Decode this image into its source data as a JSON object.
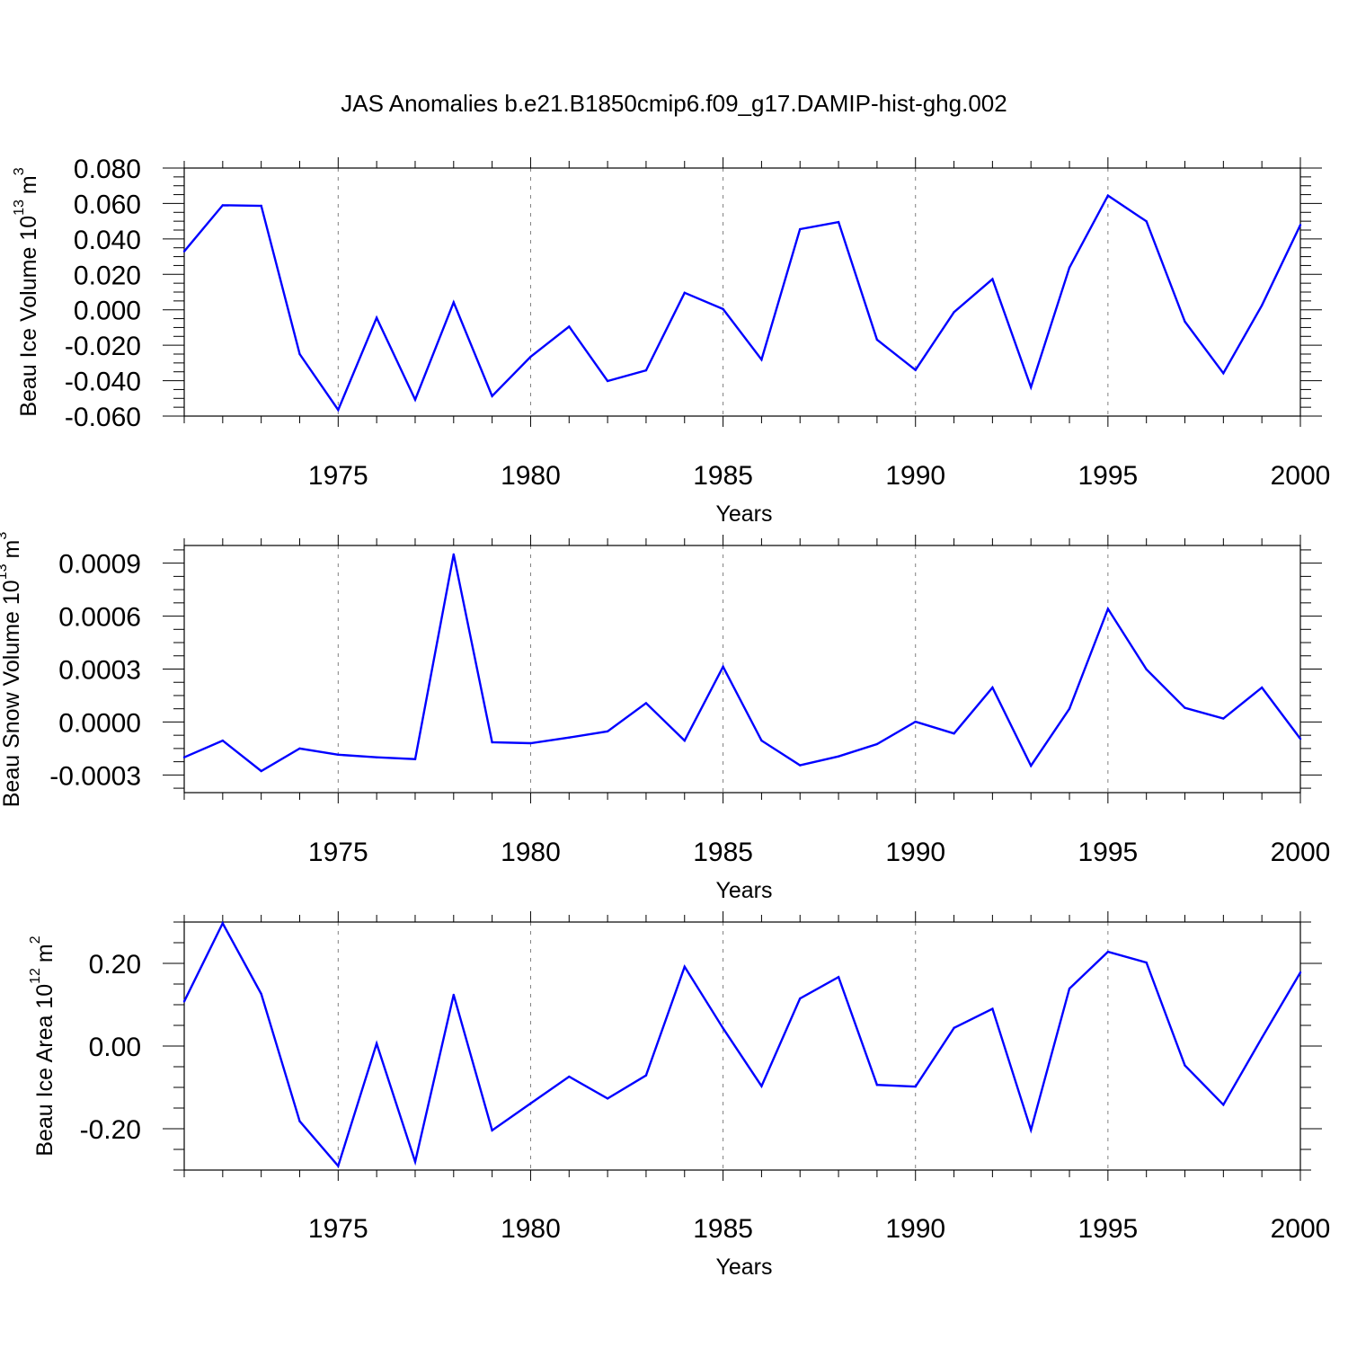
{
  "title": "JAS Anomalies b.e21.B1850cmip6.f09_g17.DAMIP-hist-ghg.002",
  "colors": {
    "line": "#0000ff",
    "axis": "#000000",
    "grid": "#808080"
  },
  "chart_data": [
    {
      "type": "line",
      "ylabel": {
        "text": "Beau Ice Volume 10",
        "exp": "13",
        "unit": "m",
        "unit_exp": "3"
      },
      "xlabel": "Years",
      "xlim": [
        1971,
        2000
      ],
      "ylim": [
        -0.06,
        0.08
      ],
      "yticks": [
        -0.06,
        -0.04,
        -0.02,
        0.0,
        0.02,
        0.04,
        0.06,
        0.08
      ],
      "yticklabels": [
        "-0.060",
        "-0.040",
        "-0.020",
        "0.000",
        "0.020",
        "0.040",
        "0.060",
        "0.080"
      ],
      "xticks": [
        1975,
        1980,
        1985,
        1990,
        1995,
        2000
      ],
      "xticklabels": [
        "1975",
        "1980",
        "1985",
        "1990",
        "1995",
        "2000"
      ],
      "x": [
        1971,
        1972,
        1973,
        1974,
        1975,
        1976,
        1977,
        1978,
        1979,
        1980,
        1981,
        1982,
        1983,
        1984,
        1985,
        1986,
        1987,
        1988,
        1989,
        1990,
        1991,
        1992,
        1993,
        1994,
        1995,
        1996,
        1997,
        1998,
        1999,
        2000
      ],
      "y": [
        0.033,
        0.059,
        0.0587,
        -0.025,
        -0.0565,
        -0.0045,
        -0.0507,
        0.0042,
        -0.0487,
        -0.0265,
        -0.0095,
        -0.0402,
        -0.0342,
        0.0096,
        0.0004,
        -0.0281,
        0.0455,
        0.0495,
        -0.0169,
        -0.034,
        -0.0013,
        0.0173,
        -0.0437,
        0.0238,
        0.0645,
        0.0499,
        -0.0067,
        -0.0358,
        0.0025,
        0.0479
      ]
    },
    {
      "type": "line",
      "ylabel": {
        "text": "Beau Snow Volume 10",
        "exp": "13",
        "unit": "m",
        "unit_exp": "3"
      },
      "xlabel": "Years",
      "xlim": [
        1971,
        2000
      ],
      "ylim": [
        -0.0004,
        0.001
      ],
      "yticks": [
        -0.0003,
        0.0,
        0.0003,
        0.0006,
        0.0009
      ],
      "yticklabels": [
        "-0.0003",
        "0.0000",
        "0.0003",
        "0.0006",
        "0.0009"
      ],
      "xticks": [
        1975,
        1980,
        1985,
        1990,
        1995,
        2000
      ],
      "xticklabels": [
        "1975",
        "1980",
        "1985",
        "1990",
        "1995",
        "2000"
      ],
      "x": [
        1971,
        1972,
        1973,
        1974,
        1975,
        1976,
        1977,
        1978,
        1979,
        1980,
        1981,
        1982,
        1983,
        1984,
        1985,
        1986,
        1987,
        1988,
        1989,
        1990,
        1991,
        1992,
        1993,
        1994,
        1995,
        1996,
        1997,
        1998,
        1999,
        2000
      ],
      "y": [
        -0.0002,
        -0.000105,
        -0.000278,
        -0.00015,
        -0.000185,
        -0.0002,
        -0.00021,
        0.00095,
        -0.000115,
        -0.00012,
        -8.8e-05,
        -5.3e-05,
        0.000107,
        -0.000105,
        0.000313,
        -0.000105,
        -0.000245,
        -0.000195,
        -0.000125,
        1.5e-06,
        -6.5e-05,
        0.000195,
        -0.000248,
        7.5e-05,
        0.000641,
        0.000298,
        8e-05,
        2e-05,
        0.000195,
        -9.5e-05
      ]
    },
    {
      "type": "line",
      "ylabel": {
        "text": "Beau Ice Area 10",
        "exp": "12",
        "unit": "m",
        "unit_exp": "2"
      },
      "xlabel": "Years",
      "xlim": [
        1971,
        2000
      ],
      "ylim": [
        -0.3,
        0.3
      ],
      "yticks": [
        -0.2,
        0.0,
        0.2
      ],
      "yticklabels": [
        "-0.20",
        "0.00",
        "0.20"
      ],
      "xticks": [
        1975,
        1980,
        1985,
        1990,
        1995,
        2000
      ],
      "xticklabels": [
        "1975",
        "1980",
        "1985",
        "1990",
        "1995",
        "2000"
      ],
      "x": [
        1971,
        1972,
        1973,
        1974,
        1975,
        1976,
        1977,
        1978,
        1979,
        1980,
        1981,
        1982,
        1983,
        1984,
        1985,
        1986,
        1987,
        1988,
        1989,
        1990,
        1991,
        1992,
        1993,
        1994,
        1995,
        1996,
        1997,
        1998,
        1999,
        2000
      ],
      "y": [
        0.108,
        0.297,
        0.126,
        -0.182,
        -0.29,
        0.006,
        -0.28,
        0.124,
        -0.204,
        -0.139,
        -0.074,
        -0.127,
        -0.071,
        0.192,
        0.043,
        -0.097,
        0.115,
        0.167,
        -0.094,
        -0.098,
        0.044,
        0.09,
        -0.203,
        0.139,
        0.228,
        0.202,
        -0.047,
        -0.142,
        0.02,
        0.178
      ]
    }
  ]
}
